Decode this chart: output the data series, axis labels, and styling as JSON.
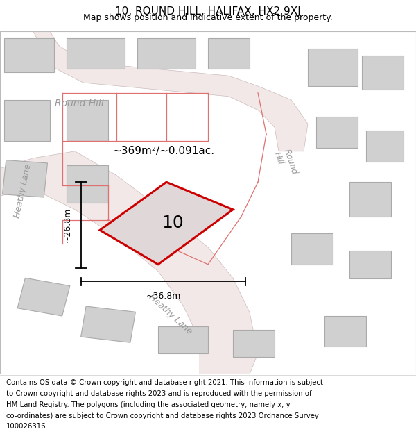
{
  "title_line1": "10, ROUND HILL, HALIFAX, HX2 9XJ",
  "title_line2": "Map shows position and indicative extent of the property.",
  "footer_lines": [
    "Contains OS data © Crown copyright and database right 2021. This information is subject",
    "to Crown copyright and database rights 2023 and is reproduced with the permission of",
    "HM Land Registry. The polygons (including the associated geometry, namely x, y",
    "co-ordinates) are subject to Crown copyright and database rights 2023 Ordnance Survey",
    "100026316."
  ],
  "area_label": "~369m²/~0.091ac.",
  "property_number": "10",
  "dim_height": "~26.8m",
  "dim_width": "~36.8m",
  "map_bg": "#eeecec",
  "road_color": "#f2e8e8",
  "road_outline": "#ccbbbb",
  "building_fill": "#d0d0d0",
  "building_outline": "#aaaaaa",
  "property_outline_color": "#cc0000",
  "property_fill": "#e0d8d8",
  "red_line_color": "#e07070",
  "street_label_color": "#999999",
  "title_fontsize": 11,
  "subtitle_fontsize": 9,
  "footer_fontsize": 7.3,
  "area_fontsize": 11,
  "number_fontsize": 18,
  "dim_fontsize": 9,
  "road_label_fontsize": 10,
  "road_label_fontsize_sm": 8.5
}
